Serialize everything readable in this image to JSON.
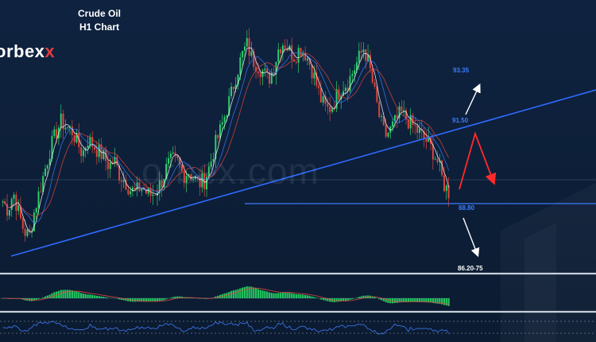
{
  "title_line1": "Crude Oil",
  "title_line2": "H1 Chart",
  "brand": "orbex",
  "brand_accent": "x",
  "watermark": "orbex.com",
  "colors": {
    "background": "#0d1e36",
    "bull": "#2bd06b",
    "bear": "#e0453d",
    "trendline": "#2f6bff",
    "macd_hist": "#22c55e",
    "level_blue": "#3b7dff",
    "level_white": "#ffffff",
    "arrow_red": "#ff2a2a"
  },
  "chart_data": {
    "type": "candlestick",
    "title": "Crude Oil",
    "subtitle": "H1 Chart",
    "price_levels": [
      {
        "label": "93.35",
        "role": "upper target",
        "color": "#3b7dff"
      },
      {
        "label": "91.50",
        "role": "trendline break level",
        "color": "#3b7dff"
      },
      {
        "label": "88.80",
        "role": "horizontal support",
        "color": "#3b7dff"
      },
      {
        "label": "86.20-75",
        "role": "lower target",
        "color": "#ffffff"
      }
    ],
    "scenarios": [
      {
        "direction": "up",
        "from": "91.50",
        "to": "93.35",
        "color": "white"
      },
      {
        "direction": "down",
        "from": "88.80",
        "to": "86.20-75",
        "color": "white"
      },
      {
        "direction": "bounce-then-down",
        "color": "red"
      }
    ],
    "price_path": [
      88.6,
      88.3,
      88.9,
      88.2,
      87.6,
      87.4,
      88.3,
      89.0,
      89.7,
      90.4,
      90.9,
      91.3,
      91.1,
      91.0,
      90.6,
      90.2,
      90.7,
      90.5,
      90.3,
      90.1,
      89.8,
      90.0,
      89.5,
      89.3,
      89.0,
      88.9,
      89.1,
      88.9,
      88.8,
      89.0,
      89.3,
      89.8,
      90.0,
      89.9,
      89.5,
      89.6,
      89.4,
      89.2,
      89.3,
      89.8,
      90.5,
      91.0,
      91.6,
      92.2,
      92.9,
      93.5,
      93.9,
      93.4,
      93.2,
      93.0,
      92.7,
      93.1,
      93.8,
      94.0,
      93.7,
      93.5,
      93.8,
      93.6,
      93.2,
      92.6,
      92.0,
      91.7,
      91.8,
      92.2,
      92.5,
      92.6,
      93.0,
      93.4,
      93.8,
      93.2,
      92.3,
      91.4,
      90.8,
      91.0,
      91.3,
      91.6,
      91.4,
      91.2,
      91.0,
      90.8,
      90.6,
      90.3,
      89.9,
      89.2,
      88.9
    ],
    "indicators": [
      "moving averages",
      "MACD histogram",
      "oscillator"
    ]
  }
}
